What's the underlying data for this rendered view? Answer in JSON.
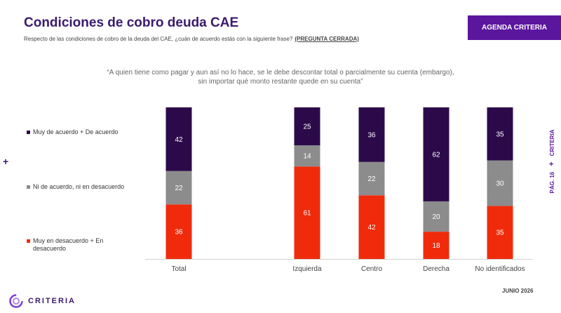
{
  "header": {
    "title": "Condiciones de cobro deuda CAE",
    "subtitle": "Respecto de las condiciones de cobro de la deuda del CAE, ¿cuán de acuerdo estás con la siguiente frase?",
    "subtitle_tag": "(PREGUNTA CERRADA)",
    "badge": "AGENDA CRITERIA"
  },
  "quote": "“A quien tiene como pagar y aun así no lo hace, se le debe descontar total o parcialmente su cuenta (embargo), sin importar qué monto restante quede en su cuenta”",
  "side": {
    "brand": "CRITERIA",
    "separator": "+",
    "page": "PÁG. 16"
  },
  "left_plus": "+",
  "footer": {
    "date": "JUNIO 2026",
    "logo_text": "CRITERIA"
  },
  "colors": {
    "dark_purple": "#2c0a4a",
    "gray": "#8c8c8c",
    "red": "#ef2b0c",
    "brand_purple": "#5b169e"
  },
  "chart_data": {
    "type": "bar",
    "stacked": true,
    "normalized_percent": true,
    "categories": [
      "Total",
      "Izquierda",
      "Centro",
      "Derecha",
      "No identificados"
    ],
    "series": [
      {
        "name": "Muy en desacuerdo + En desacuerdo",
        "color": "#ef2b0c",
        "values": [
          36,
          61,
          42,
          18,
          35
        ]
      },
      {
        "name": "Ni de acuerdo, ni en desacuerdo",
        "color": "#8c8c8c",
        "values": [
          22,
          14,
          22,
          20,
          30
        ]
      },
      {
        "name": "Muy de acuerdo + De acuerdo",
        "color": "#2c0a4a",
        "values": [
          42,
          25,
          36,
          62,
          35
        ]
      }
    ],
    "ylim": [
      0,
      100
    ],
    "data_labels": true,
    "legend_position": "left",
    "grid": false
  }
}
